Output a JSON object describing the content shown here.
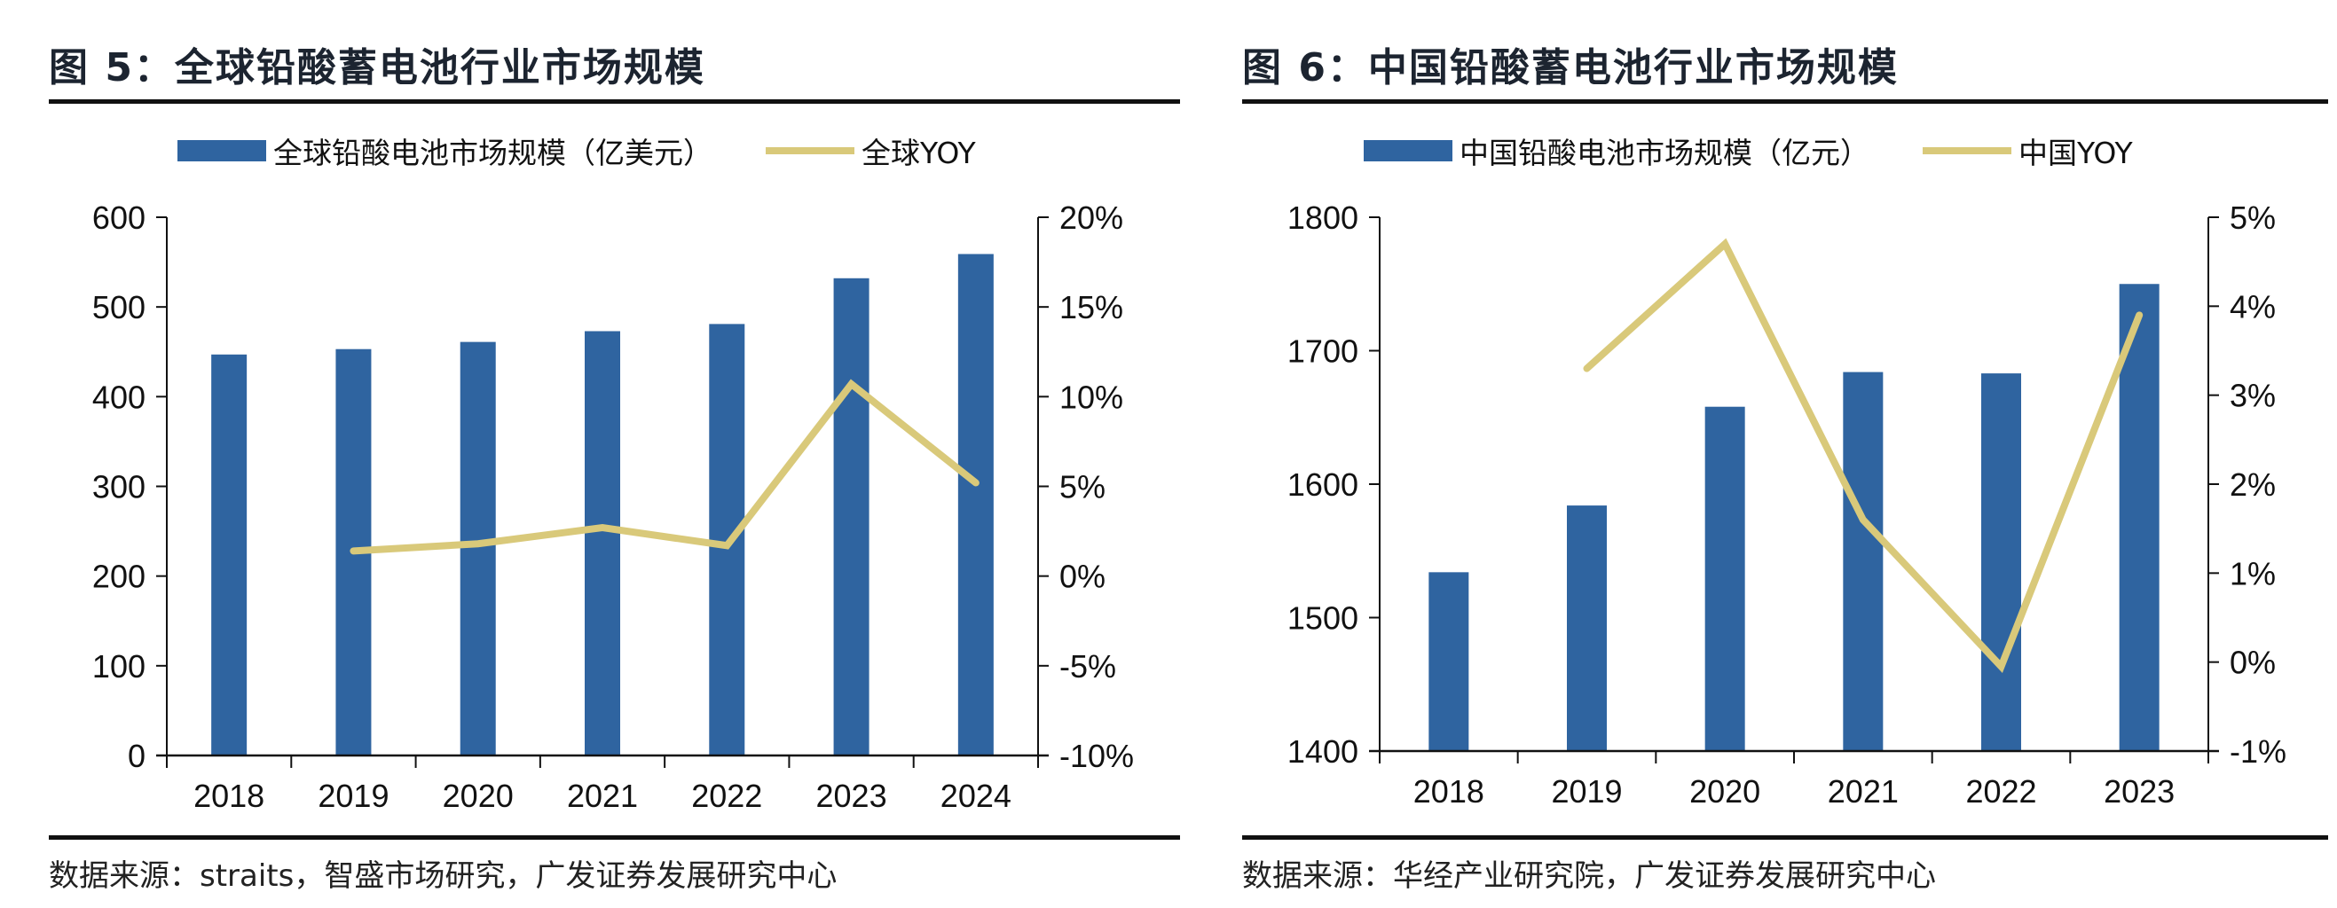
{
  "colors": {
    "bar": "#2f64a0",
    "line": "#d9c97a",
    "axis": "#111111"
  },
  "chart_data": [
    {
      "type": "bar",
      "combo_line": true,
      "title": "图 5：全球铅酸蓄电池行业市场规模",
      "legend": [
        "全球铅酸电池市场规模（亿美元）",
        "全球YOY"
      ],
      "legend_placement": "top-center",
      "categories": [
        "2018",
        "2019",
        "2020",
        "2021",
        "2022",
        "2023",
        "2024"
      ],
      "series": [
        {
          "name": "全球铅酸电池市场规模（亿美元）",
          "type": "bar",
          "axis": "left",
          "values": [
            447,
            453,
            461,
            473,
            481,
            532,
            559
          ]
        },
        {
          "name": "全球YOY",
          "type": "line",
          "axis": "right",
          "unit": "%",
          "values": [
            null,
            1.4,
            1.8,
            2.7,
            1.7,
            10.7,
            5.2
          ]
        }
      ],
      "y_left": {
        "ylim": [
          0,
          600
        ],
        "ticks": [
          0,
          100,
          200,
          300,
          400,
          500,
          600
        ],
        "tick_labels": [
          "0",
          "100",
          "200",
          "300",
          "400",
          "500",
          "600"
        ]
      },
      "y_right": {
        "ylim": [
          -10,
          20
        ],
        "ticks": [
          -10,
          -5,
          0,
          5,
          10,
          15,
          20
        ],
        "tick_labels": [
          "-10%",
          "-5%",
          "0%",
          "5%",
          "10%",
          "15%",
          "20%"
        ]
      },
      "xlabel": "",
      "ylabel": "",
      "grid": false,
      "source": "数据来源：straits，智盛市场研究，广发证券发展研究中心"
    },
    {
      "type": "bar",
      "combo_line": true,
      "title": "图 6：中国铅酸蓄电池行业市场规模",
      "legend": [
        "中国铅酸电池市场规模（亿元）",
        "中国YOY"
      ],
      "legend_placement": "top-center",
      "categories": [
        "2018",
        "2019",
        "2020",
        "2021",
        "2022",
        "2023"
      ],
      "series": [
        {
          "name": "中国铅酸电池市场规模（亿元）",
          "type": "bar",
          "axis": "left",
          "values": [
            1534,
            1584,
            1658,
            1684,
            1683,
            1750
          ]
        },
        {
          "name": "中国YOY",
          "type": "line",
          "axis": "right",
          "unit": "%",
          "values": [
            null,
            3.3,
            4.7,
            1.6,
            -0.05,
            3.9
          ]
        }
      ],
      "y_left": {
        "ylim": [
          1400,
          1800
        ],
        "ticks": [
          1400,
          1500,
          1600,
          1700,
          1800
        ],
        "tick_labels": [
          "1400",
          "1500",
          "1600",
          "1700",
          "1800"
        ]
      },
      "y_right": {
        "ylim": [
          -1,
          5
        ],
        "ticks": [
          -1,
          0,
          1,
          2,
          3,
          4,
          5
        ],
        "tick_labels": [
          "-1%",
          "0%",
          "1%",
          "2%",
          "3%",
          "4%",
          "5%"
        ]
      },
      "xlabel": "",
      "ylabel": "",
      "grid": false,
      "source": "数据来源：华经产业研究院，广发证券发展研究中心"
    }
  ]
}
